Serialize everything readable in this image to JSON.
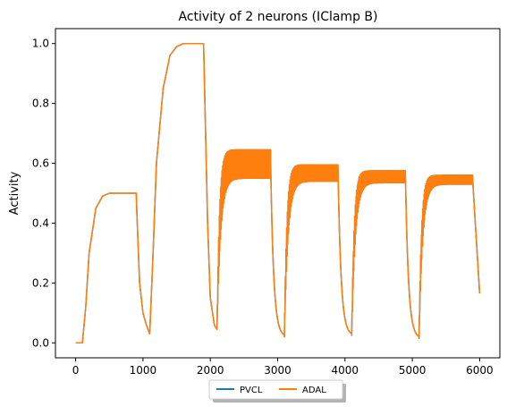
{
  "chart_data": {
    "type": "line",
    "title": "Activity of 2 neurons (IClamp B)",
    "xlabel": "",
    "ylabel": "Activity",
    "xlim": [
      -300,
      6300
    ],
    "ylim": [
      -0.05,
      1.05
    ],
    "xticks": [
      0,
      1000,
      2000,
      3000,
      4000,
      5000,
      6000
    ],
    "yticks": [
      0.0,
      0.2,
      0.4,
      0.6,
      0.8,
      1.0
    ],
    "xtick_labels": [
      "0",
      "1000",
      "2000",
      "3000",
      "4000",
      "5000",
      "6000"
    ],
    "ytick_labels": [
      "0.0",
      "0.2",
      "0.4",
      "0.6",
      "0.8",
      "1.0"
    ],
    "grid": false,
    "legend_placement": "bottom-center",
    "series": [
      {
        "name": "PVCL",
        "color": "#1f77b4",
        "x": [
          0,
          100,
          150,
          200,
          300,
          400,
          500,
          700,
          900,
          910,
          950,
          1000,
          1050,
          1100,
          1150,
          1200,
          1300,
          1400,
          1500,
          1600,
          1900,
          1920,
          1960,
          2000,
          2060,
          2100
        ],
        "y": [
          0.0,
          0.0,
          0.12,
          0.3,
          0.45,
          0.49,
          0.5,
          0.5,
          0.5,
          0.43,
          0.2,
          0.1,
          0.06,
          0.03,
          0.3,
          0.6,
          0.85,
          0.96,
          0.99,
          1.0,
          1.0,
          0.8,
          0.4,
          0.15,
          0.06,
          0.045
        ]
      },
      {
        "name": "ADAL",
        "color": "#ff7f0e",
        "x": [
          0,
          100,
          150,
          200,
          300,
          400,
          500,
          700,
          900,
          910,
          950,
          1000,
          1050,
          1100,
          1150,
          1200,
          1300,
          1400,
          1500,
          1600,
          1900,
          1920,
          1960,
          2000,
          2060,
          2100
        ],
        "y": [
          0.0,
          0.0,
          0.12,
          0.3,
          0.45,
          0.49,
          0.5,
          0.5,
          0.5,
          0.43,
          0.2,
          0.1,
          0.06,
          0.03,
          0.3,
          0.6,
          0.85,
          0.96,
          0.99,
          1.0,
          1.0,
          0.8,
          0.4,
          0.15,
          0.06,
          0.045
        ]
      }
    ],
    "oscillating_segments": [
      {
        "x_start": 2100,
        "x_end": 2900,
        "lower_plateau": 0.55,
        "upper_plateau": 0.645,
        "min_before": 0.045,
        "end_value": 0.02
      },
      {
        "x_start": 3100,
        "x_end": 3900,
        "lower_plateau": 0.54,
        "upper_plateau": 0.595,
        "min_before": 0.02,
        "end_value": 0.025
      },
      {
        "x_start": 4100,
        "x_end": 4900,
        "lower_plateau": 0.535,
        "upper_plateau": 0.575,
        "min_before": 0.025,
        "end_value": 0.015
      },
      {
        "x_start": 5100,
        "x_end": 5900,
        "lower_plateau": 0.53,
        "upper_plateau": 0.56,
        "min_before": 0.015,
        "end_value": 0.165
      }
    ]
  }
}
